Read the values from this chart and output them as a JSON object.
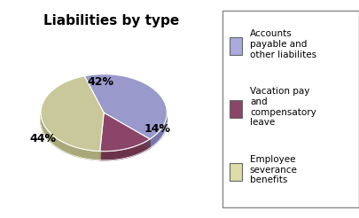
{
  "title": "Liabilities by type",
  "slices": [
    42,
    14,
    44
  ],
  "pct_labels": [
    "42%",
    "14%",
    "44%"
  ],
  "face_colors": [
    "#9999cc",
    "#8b4569",
    "#c8c89a"
  ],
  "side_colors": [
    "#7777aa",
    "#6b3349",
    "#a8a87a"
  ],
  "legend_labels": [
    "Accounts\npayable and\nother liabilites",
    "Vacation pay\nand\ncompensatory\nleave",
    "Employee\nseverance\nbenefits"
  ],
  "legend_face_colors": [
    "#aaaadd",
    "#8b4569",
    "#ddddaa"
  ],
  "background_color": "#ffffff",
  "startangle": 108,
  "title_fontsize": 11,
  "label_fontsize": 9,
  "depth": 0.12
}
